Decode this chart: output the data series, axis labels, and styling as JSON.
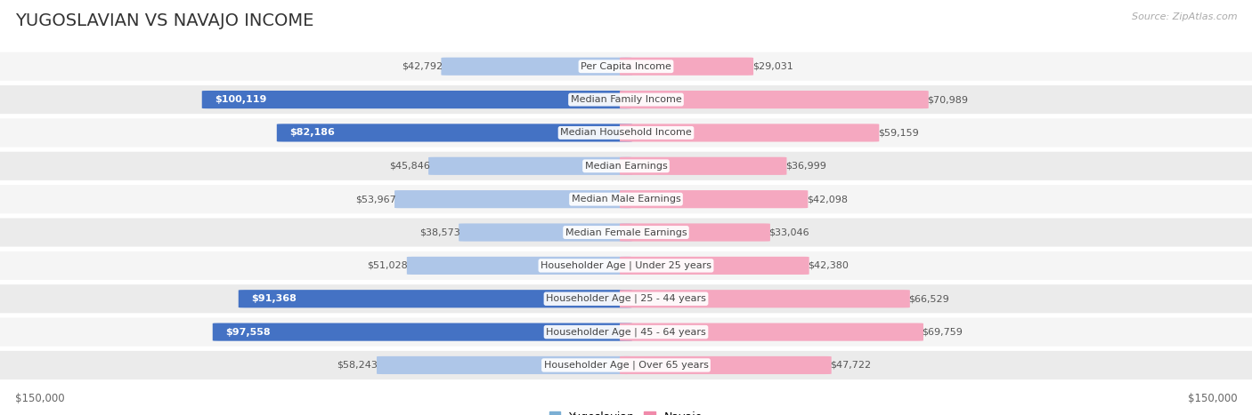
{
  "title": "YUGOSLAVIAN VS NAVAJO INCOME",
  "source": "Source: ZipAtlas.com",
  "categories": [
    "Per Capita Income",
    "Median Family Income",
    "Median Household Income",
    "Median Earnings",
    "Median Male Earnings",
    "Median Female Earnings",
    "Householder Age | Under 25 years",
    "Householder Age | 25 - 44 years",
    "Householder Age | 45 - 64 years",
    "Householder Age | Over 65 years"
  ],
  "yugoslavian_values": [
    42792,
    100119,
    82186,
    45846,
    53967,
    38573,
    51028,
    91368,
    97558,
    58243
  ],
  "navajo_values": [
    29031,
    70989,
    59159,
    36999,
    42098,
    33046,
    42380,
    66529,
    69759,
    47722
  ],
  "yugoslavian_labels": [
    "$42,792",
    "$100,119",
    "$82,186",
    "$45,846",
    "$53,967",
    "$38,573",
    "$51,028",
    "$91,368",
    "$97,558",
    "$58,243"
  ],
  "navajo_labels": [
    "$29,031",
    "$70,989",
    "$59,159",
    "$36,999",
    "$42,098",
    "$33,046",
    "$42,380",
    "$66,529",
    "$69,759",
    "$47,722"
  ],
  "max_value": 150000,
  "yugoslavian_color_light": "#aec6e8",
  "yugoslavian_color_dark": "#4472c4",
  "navajo_color_light": "#f5a8c0",
  "navajo_color_dark": "#e8608a",
  "yug_dark_threshold": 80000,
  "nav_dark_threshold": 150001,
  "background_color": "#ffffff",
  "row_bg_even": "#f5f5f5",
  "row_bg_odd": "#ebebeb",
  "legend_yug_color": "#7bafd4",
  "legend_nav_color": "#f08aaa",
  "xlabel_left": "$150,000",
  "xlabel_right": "$150,000",
  "title_fontsize": 14,
  "label_fontsize": 8,
  "cat_fontsize": 8
}
